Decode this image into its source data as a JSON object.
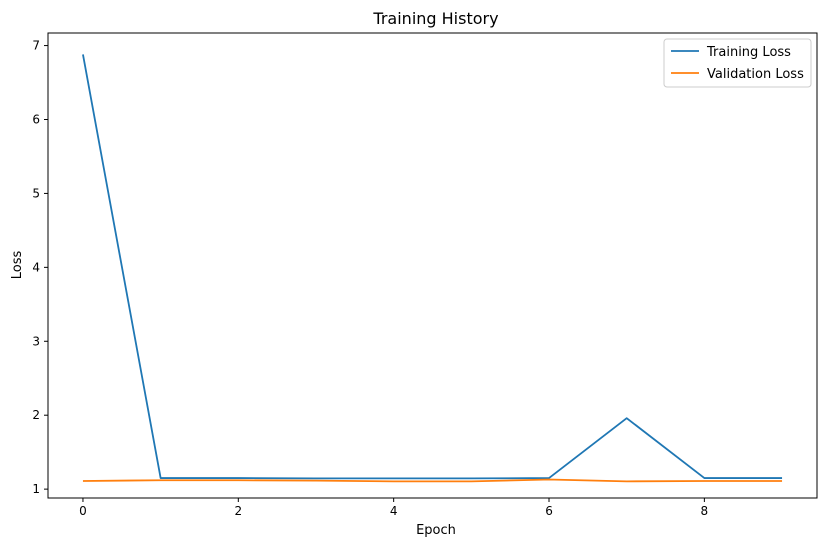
{
  "chart_data": {
    "type": "line",
    "title": "Training History",
    "xlabel": "Epoch",
    "ylabel": "Loss",
    "x": [
      0,
      1,
      2,
      3,
      4,
      5,
      6,
      7,
      8,
      9
    ],
    "xlim": [
      -0.45,
      9.45
    ],
    "ylim": [
      0.88,
      7.17
    ],
    "xticks": [
      0,
      2,
      4,
      6,
      8
    ],
    "yticks": [
      1,
      2,
      3,
      4,
      5,
      6,
      7
    ],
    "series": [
      {
        "name": "Training Loss",
        "color": "#1f77b4",
        "values": [
          6.88,
          1.15,
          1.15,
          1.145,
          1.145,
          1.145,
          1.15,
          1.96,
          1.15,
          1.15
        ]
      },
      {
        "name": "Validation Loss",
        "color": "#ff7f0e",
        "values": [
          1.11,
          1.12,
          1.12,
          1.115,
          1.105,
          1.105,
          1.13,
          1.105,
          1.11,
          1.11
        ]
      }
    ],
    "grid": false,
    "legend_position": "top-right"
  }
}
